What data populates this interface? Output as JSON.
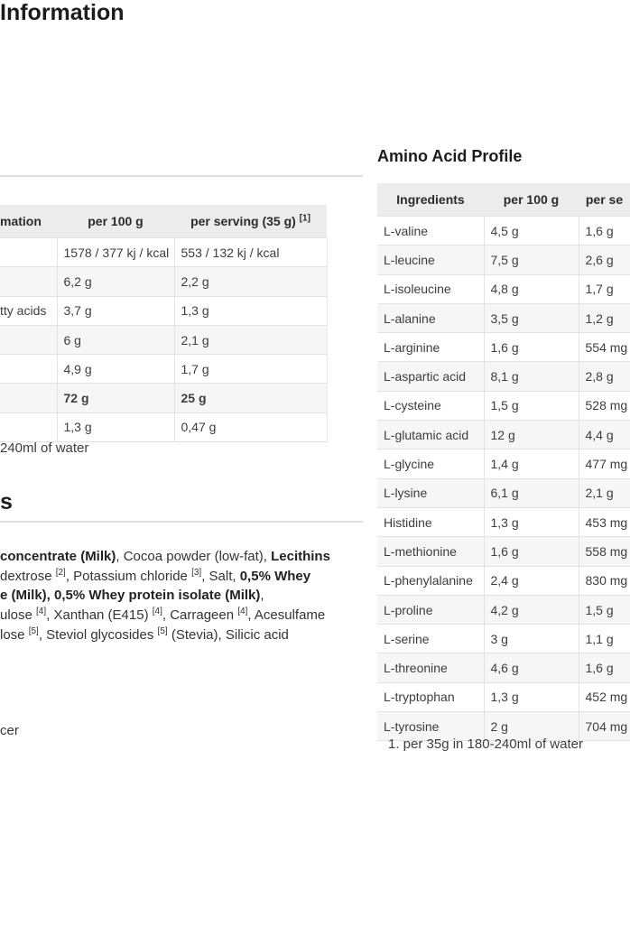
{
  "left": {
    "title_fragment": "Information",
    "table": {
      "header": {
        "col1_fragment": "mation",
        "col2": "per 100 g",
        "col3": "per serving (35 g)",
        "col3_sup": "[1]"
      },
      "rows": [
        {
          "label": "",
          "per_100g": "1578 / 377 kj / kcal",
          "per_serving": "553 / 132 kj / kcal",
          "bold": false
        },
        {
          "label": "",
          "per_100g": "6,2 g",
          "per_serving": "2,2 g",
          "bold": false
        },
        {
          "label": "tty acids",
          "per_100g": "3,7 g",
          "per_serving": "1,3 g",
          "bold": false
        },
        {
          "label": "",
          "per_100g": "6 g",
          "per_serving": "2,1 g",
          "bold": false
        },
        {
          "label": "",
          "per_100g": "4,9 g",
          "per_serving": "1,7 g",
          "bold": false
        },
        {
          "label": "",
          "per_100g": "72 g",
          "per_serving": "25 g",
          "bold": true
        },
        {
          "label": "",
          "per_100g": "1,3 g",
          "per_serving": "0,47 g",
          "bold": false
        }
      ]
    },
    "footnote_fragment": "240ml of water",
    "ingredients_heading_fragment": "s",
    "ingredients_lines": [
      [
        {
          "t": "concentrate (Milk)",
          "b": true
        },
        {
          "t": ", Cocoa powder (low-fat), "
        },
        {
          "t": "Lecithins",
          "b": true
        }
      ],
      [
        {
          "t": "dextrose "
        },
        {
          "t": "[2]",
          "sup": true
        },
        {
          "t": ", Potassium chloride "
        },
        {
          "t": "[3]",
          "sup": true
        },
        {
          "t": ", Salt, "
        },
        {
          "t": "0,5% Whey",
          "b": true
        }
      ],
      [
        {
          "t": "e (Milk), 0,5% Whey protein isolate (Milk)",
          "b": true
        },
        {
          "t": ","
        }
      ],
      [
        {
          "t": "ulose "
        },
        {
          "t": "[4]",
          "sup": true
        },
        {
          "t": ", Xanthan (E415) "
        },
        {
          "t": "[4]",
          "sup": true
        },
        {
          "t": ", Carrageen "
        },
        {
          "t": "[4]",
          "sup": true
        },
        {
          "t": ", Acesulfame"
        }
      ],
      [
        {
          "t": "lose "
        },
        {
          "t": "[5]",
          "sup": true
        },
        {
          "t": ", Steviol glycosides "
        },
        {
          "t": "[5]",
          "sup": true
        },
        {
          "t": " (Stevia), Silicic acid"
        }
      ]
    ],
    "trailing_fragment": "cer"
  },
  "right": {
    "title": "Amino Acid Profile",
    "table": {
      "header": {
        "col1": "Ingredients",
        "col2": "per 100 g",
        "col3_fragment": "per se"
      },
      "rows": [
        [
          "L-valine",
          "4,5 g",
          "1,6 g"
        ],
        [
          "L-leucine",
          "7,5 g",
          "2,6 g"
        ],
        [
          "L-isoleucine",
          "4,8 g",
          "1,7 g"
        ],
        [
          "L-alanine",
          "3,5 g",
          "1,2 g"
        ],
        [
          "L-arginine",
          "1,6 g",
          "554 mg"
        ],
        [
          "L-aspartic acid",
          "8,1 g",
          "2,8 g"
        ],
        [
          "L-cysteine",
          "1,5 g",
          "528 mg"
        ],
        [
          "L-glutamic acid",
          "12 g",
          "4,4 g"
        ],
        [
          "L-glycine",
          "1,4 g",
          "477 mg"
        ],
        [
          "L-lysine",
          "6,1 g",
          "2,1 g"
        ],
        [
          "Histidine",
          "1,3 g",
          "453 mg"
        ],
        [
          "L-methionine",
          "1,6 g",
          "558 mg"
        ],
        [
          "L-phenylalanine",
          "2,4 g",
          "830 mg"
        ],
        [
          "L-proline",
          "4,2 g",
          "1,5 g"
        ],
        [
          "L-serine",
          "3 g",
          "1,1 g"
        ],
        [
          "L-threonine",
          "4,6 g",
          "1,6 g"
        ],
        [
          "L-tryptophan",
          "1,3 g",
          "452 mg"
        ],
        [
          "L-tyrosine",
          "2 g",
          "704 mg"
        ]
      ]
    },
    "footnote": "1. per 35g in 180-240ml of water"
  },
  "colors": {
    "header_bg": "#ececec",
    "stripe_bg": "#f6f6f6",
    "border": "#e2e2e2",
    "body_text": "#3d3d3d",
    "heading_text": "#1c1c1c"
  }
}
